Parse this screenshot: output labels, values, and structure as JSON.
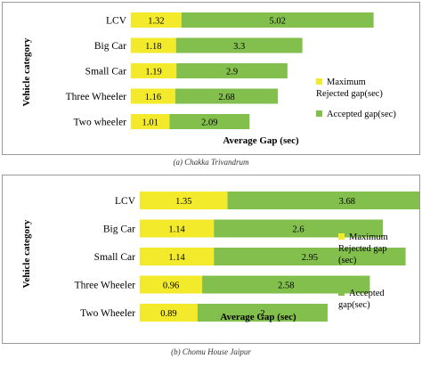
{
  "colors": {
    "rejected": "#f2ea2a",
    "accepted": "#82bf4c"
  },
  "chart_data": [
    {
      "type": "bar",
      "orientation": "horizontal",
      "stacked": true,
      "caption": "(a) Chakka Trivandrum",
      "xlabel": "Average Gap (sec)",
      "ylabel": "Vehicle category",
      "categories": [
        "LCV",
        "Big Car",
        "Small Car",
        "Three Wheeler",
        "Two wheeler"
      ],
      "series": [
        {
          "name": "Maximum Rejected gap(sec)",
          "values": [
            1.32,
            1.18,
            1.19,
            1.16,
            1.01
          ]
        },
        {
          "name": "Accepted gap(sec)",
          "values": [
            5.02,
            3.3,
            2.9,
            2.68,
            2.09
          ]
        }
      ],
      "legend_position": "right",
      "grid": false
    },
    {
      "type": "bar",
      "orientation": "horizontal",
      "stacked": true,
      "caption": "(b) Chomu House Jaipur",
      "xlabel": "Average Gap (sec)",
      "ylabel": "Vehicle category",
      "categories": [
        "LCV",
        "Big Car",
        "Small Car",
        "Three Wheeler",
        "Two Wheeler"
      ],
      "series": [
        {
          "name": "Maximum Rejected gap (sec)",
          "values": [
            1.35,
            1.14,
            1.14,
            0.96,
            0.89
          ]
        },
        {
          "name": "Accepted gap(sec)",
          "values": [
            3.68,
            2.6,
            2.95,
            2.58,
            2
          ]
        }
      ],
      "legend_position": "right",
      "grid": false
    }
  ]
}
